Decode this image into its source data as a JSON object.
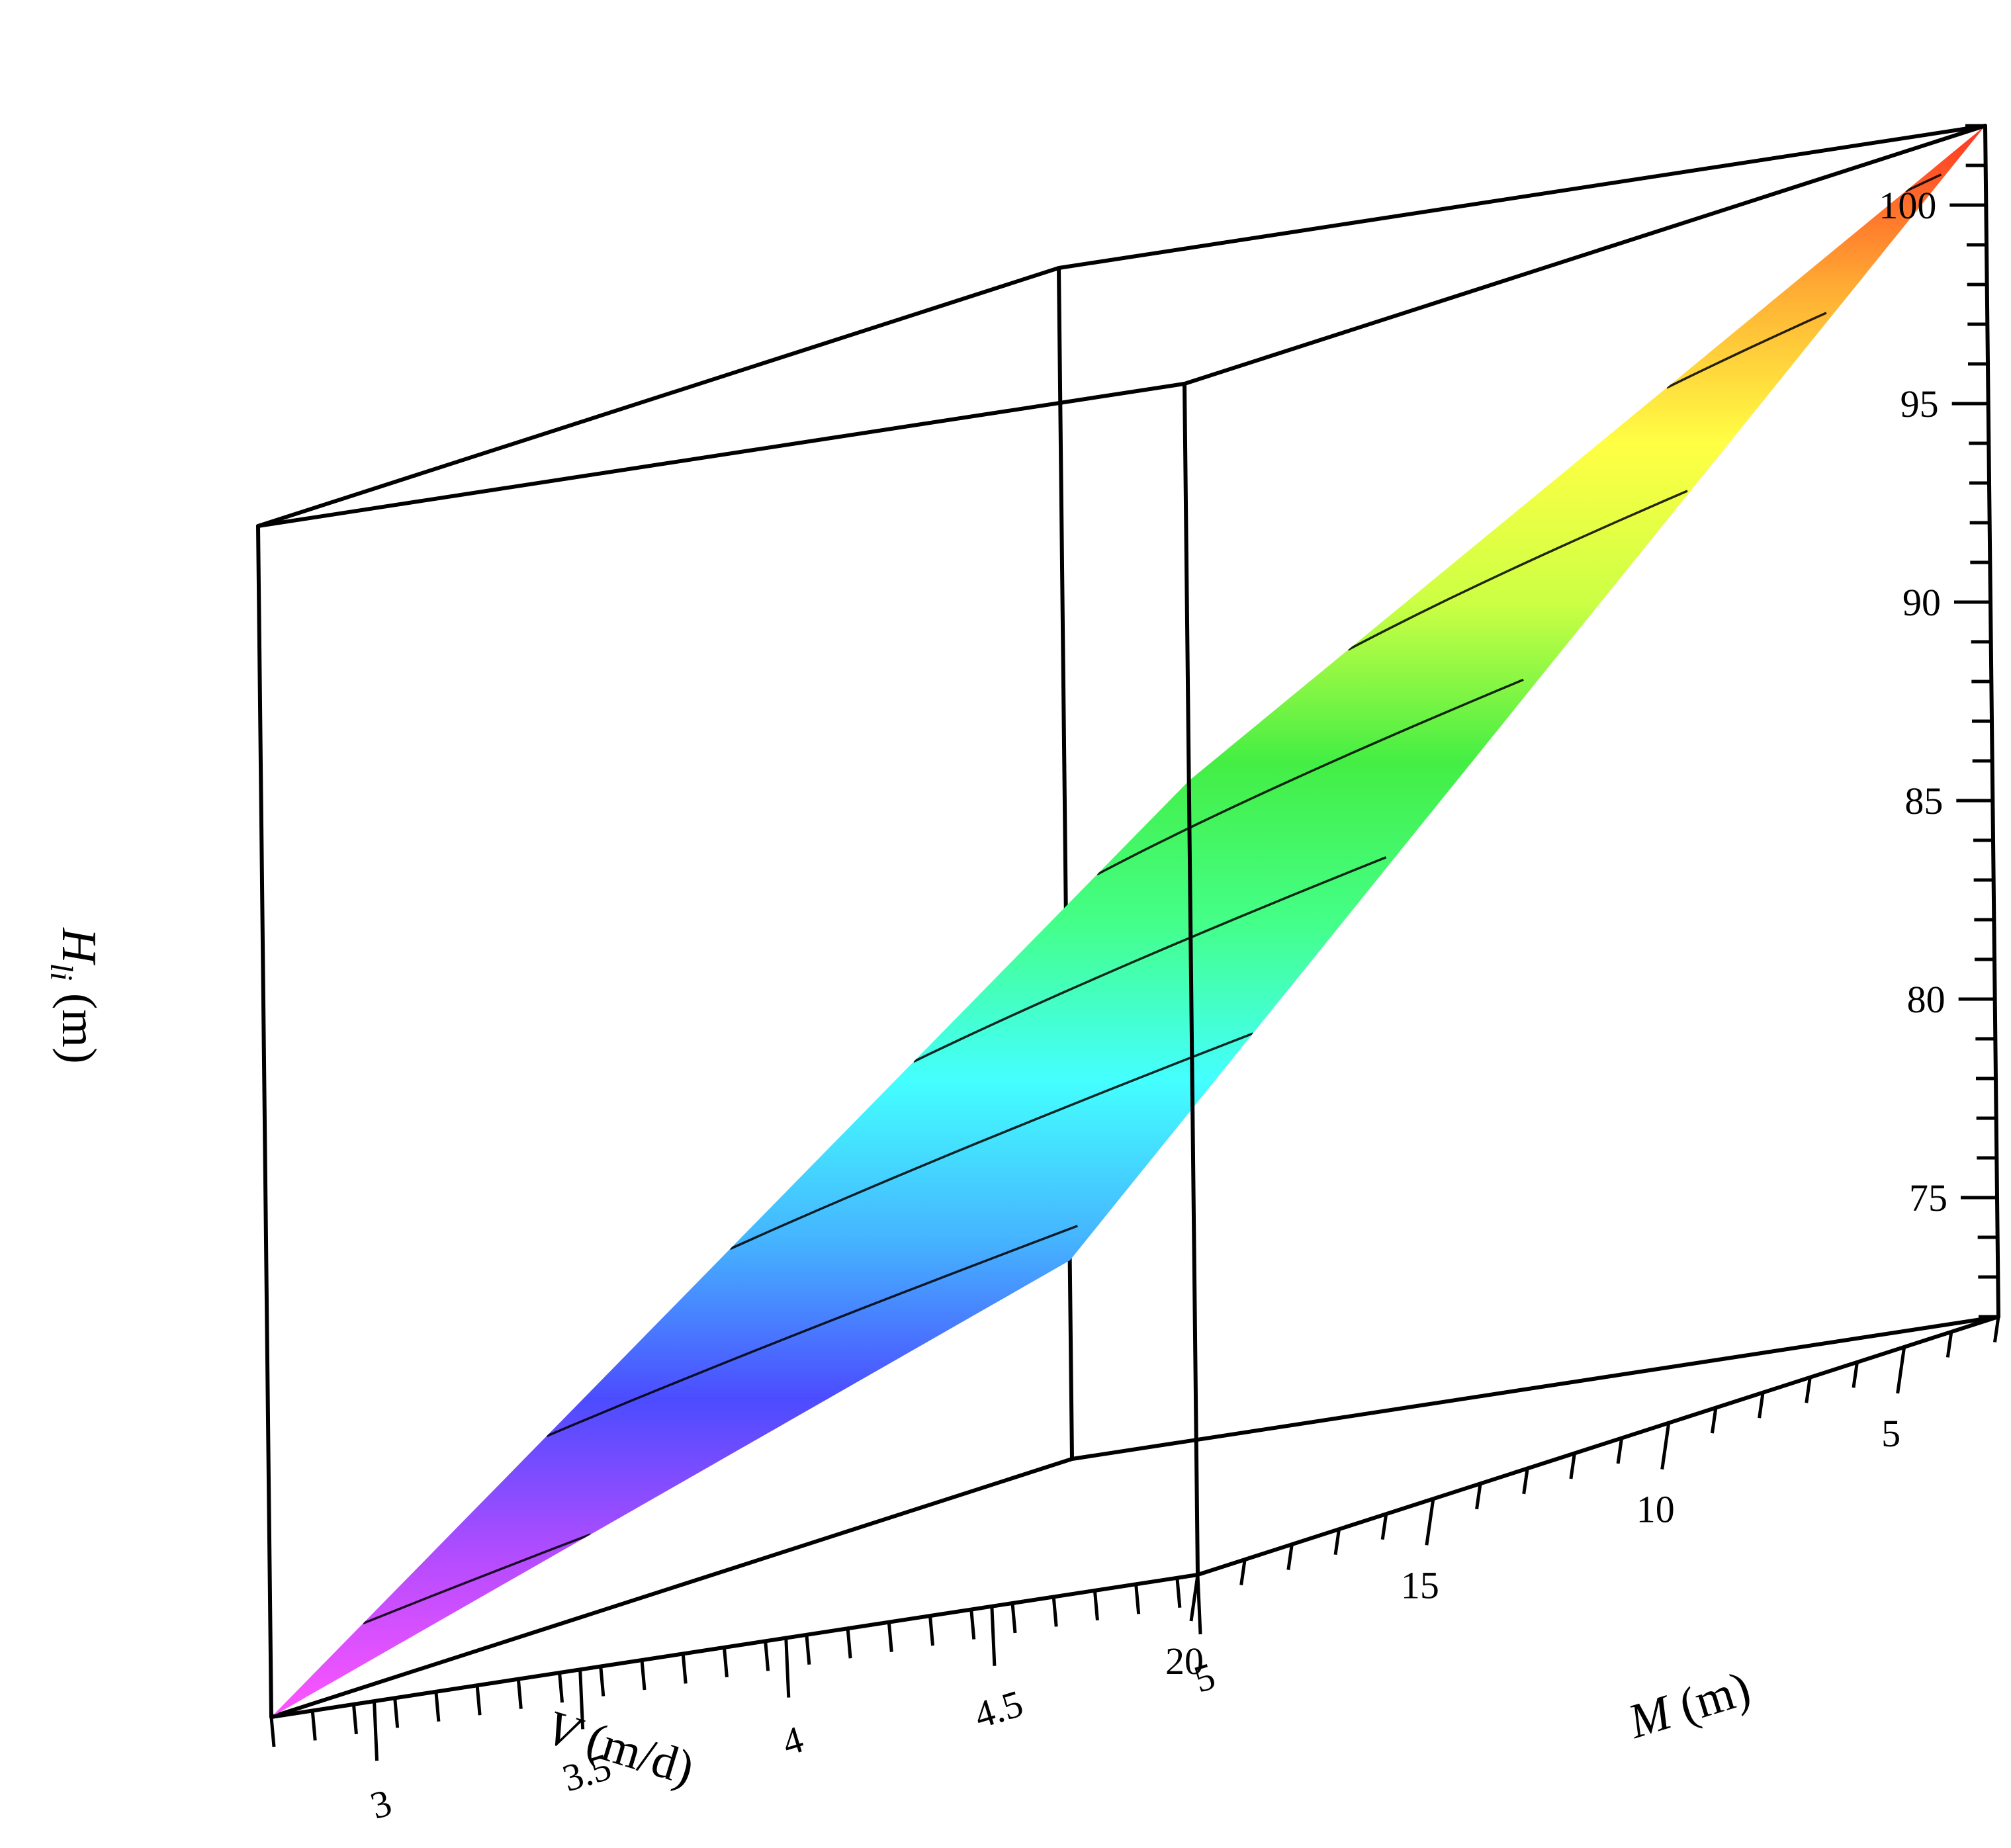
{
  "chart_data": {
    "type": "surface3d",
    "title": "",
    "x_axis": {
      "label_var": "V",
      "label_unit": " (m/d)",
      "range": [
        3,
        20
      ],
      "ticks": [
        5,
        10,
        15,
        20
      ]
    },
    "y_axis": {
      "label_var": "M",
      "label_unit": " (m)",
      "range": [
        2.75,
        5
      ],
      "ticks": [
        3,
        3.5,
        4,
        4.5,
        5
      ]
    },
    "z_axis": {
      "label_var": "H",
      "label_sub": "li",
      "label_unit": " (m)",
      "range": [
        72,
        102
      ],
      "ticks": [
        75,
        80,
        85,
        90,
        95,
        100
      ]
    },
    "surface": {
      "corners": [
        {
          "V": 3,
          "M": 2.75,
          "H": 77
        },
        {
          "V": 20,
          "M": 2.75,
          "H": 72
        },
        {
          "V": 20,
          "M": 5,
          "H": 92
        },
        {
          "V": 3,
          "M": 5,
          "H": 102
        }
      ],
      "contour_levels": [
        74,
        78,
        82,
        86,
        90,
        94,
        98,
        101
      ],
      "colormap": [
        "#ff55ff",
        "#b44cff",
        "#4c4cff",
        "#45b4ff",
        "#44ffff",
        "#44ff88",
        "#44ee44",
        "#ccff44",
        "#ffff44",
        "#ffaa33",
        "#ff3322"
      ]
    },
    "grid": false,
    "legend": "none"
  }
}
